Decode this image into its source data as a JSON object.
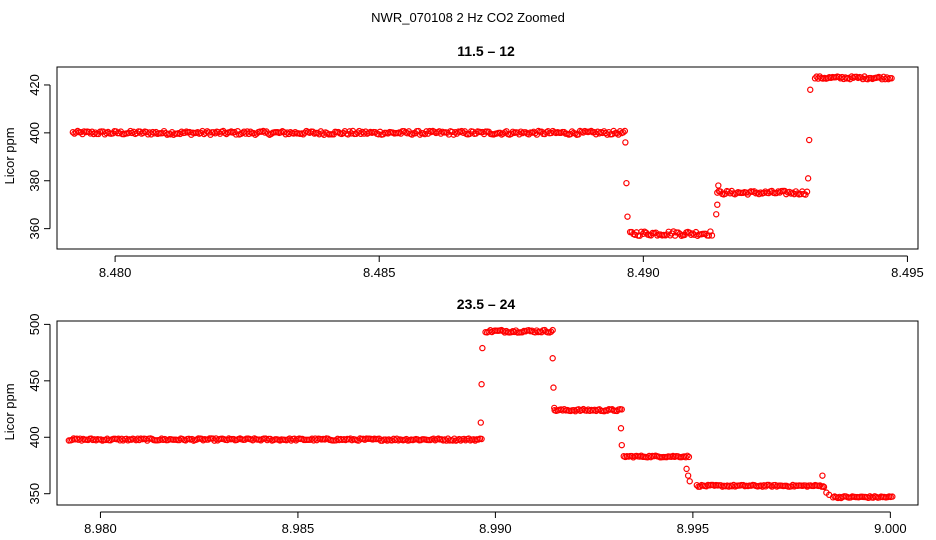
{
  "figure_title": "NWR_070108  2 Hz CO2 Zoomed",
  "chart_data": [
    {
      "type": "scatter",
      "title": "11.5 – 12",
      "xlabel": "",
      "ylabel": "Licor ppm",
      "xlim": [
        8.4789,
        8.4952
      ],
      "ylim": [
        351.5,
        427.5
      ],
      "x_ticks": [
        8.48,
        8.485,
        8.49,
        8.495
      ],
      "x_tick_labels": [
        "8.480",
        "8.485",
        "8.490",
        "8.495"
      ],
      "y_ticks": [
        360,
        380,
        400,
        420
      ],
      "y_tick_labels": [
        "360",
        "380",
        "400",
        "420"
      ],
      "point_color": "#ff0000",
      "series": [
        {
          "name": "CO2",
          "segments": [
            {
              "x_start": 8.4792,
              "x_end": 8.48965,
              "value": 400,
              "noise": 0.8
            },
            {
              "x_start": 8.48975,
              "x_end": 8.4913,
              "value": 358,
              "noise": 1.0
            },
            {
              "x_start": 8.4914,
              "x_end": 8.4931,
              "value": 375,
              "noise": 0.8
            },
            {
              "x_start": 8.49325,
              "x_end": 8.4947,
              "value": 423,
              "noise": 0.6
            }
          ],
          "transition_points": [
            {
              "x": 8.48966,
              "y": 396
            },
            {
              "x": 8.48968,
              "y": 379
            },
            {
              "x": 8.4897,
              "y": 365
            },
            {
              "x": 8.49138,
              "y": 366
            },
            {
              "x": 8.4914,
              "y": 370
            },
            {
              "x": 8.49142,
              "y": 378
            },
            {
              "x": 8.49312,
              "y": 381
            },
            {
              "x": 8.49314,
              "y": 397
            },
            {
              "x": 8.49316,
              "y": 418
            }
          ]
        }
      ]
    },
    {
      "type": "scatter",
      "title": "23.5 – 24",
      "xlabel": "",
      "ylabel": "Licor ppm",
      "xlim": [
        8.9789,
        9.0007
      ],
      "ylim": [
        340,
        503
      ],
      "x_ticks": [
        8.98,
        8.985,
        8.99,
        8.995,
        9.0
      ],
      "x_tick_labels": [
        "8.980",
        "8.985",
        "8.990",
        "8.995",
        "9.000"
      ],
      "y_ticks": [
        350,
        400,
        450,
        500
      ],
      "y_tick_labels": [
        "350",
        "400",
        "450",
        "500"
      ],
      "point_color": "#ff0000",
      "series": [
        {
          "name": "CO2",
          "segments": [
            {
              "x_start": 8.9792,
              "x_end": 8.98965,
              "value": 398,
              "noise": 1.0
            },
            {
              "x_start": 8.98975,
              "x_end": 8.99145,
              "value": 494,
              "noise": 1.2
            },
            {
              "x_start": 8.9915,
              "x_end": 8.9932,
              "value": 424,
              "noise": 1.0
            },
            {
              "x_start": 8.99325,
              "x_end": 8.9949,
              "value": 383,
              "noise": 0.8
            },
            {
              "x_start": 8.9951,
              "x_end": 8.9983,
              "value": 357,
              "noise": 0.8
            },
            {
              "x_start": 8.99855,
              "x_end": 9.00005,
              "value": 347,
              "noise": 0.8
            }
          ],
          "transition_points": [
            {
              "x": 8.98963,
              "y": 413
            },
            {
              "x": 8.98965,
              "y": 447
            },
            {
              "x": 8.98967,
              "y": 479
            },
            {
              "x": 8.99145,
              "y": 470
            },
            {
              "x": 8.99147,
              "y": 444
            },
            {
              "x": 8.99149,
              "y": 426
            },
            {
              "x": 8.99318,
              "y": 408
            },
            {
              "x": 8.9932,
              "y": 393
            },
            {
              "x": 8.99484,
              "y": 372
            },
            {
              "x": 8.99488,
              "y": 366
            },
            {
              "x": 8.99492,
              "y": 361
            },
            {
              "x": 8.99828,
              "y": 366
            },
            {
              "x": 8.99832,
              "y": 356
            },
            {
              "x": 8.99838,
              "y": 351
            },
            {
              "x": 8.99845,
              "y": 349
            }
          ]
        }
      ]
    }
  ]
}
